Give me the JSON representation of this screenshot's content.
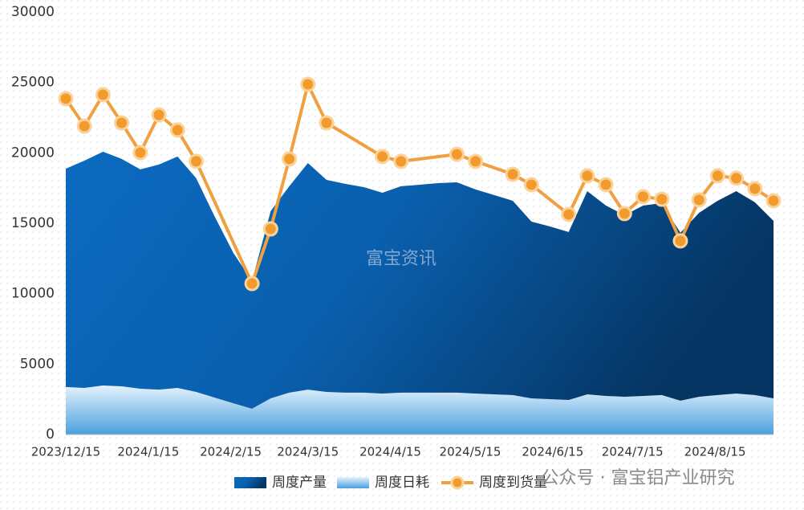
{
  "chart_data": {
    "type": "area-line",
    "watermark": "富宝资讯",
    "footer": "公众号 · 富宝铝产业研究",
    "x": [
      "2023/12/15",
      "2023/12/22",
      "2023/12/29",
      "2024/1/5",
      "2024/1/12",
      "2024/1/19",
      "2024/1/26",
      "2024/2/2",
      "2024/2/9",
      "2024/2/16",
      "2024/2/23",
      "2024/3/1",
      "2024/3/8",
      "2024/3/15",
      "2024/3/22",
      "2024/3/29",
      "2024/4/5",
      "2024/4/12",
      "2024/4/19",
      "2024/4/26",
      "2024/5/3",
      "2024/5/10",
      "2024/5/17",
      "2024/5/24",
      "2024/5/31",
      "2024/6/7",
      "2024/6/14",
      "2024/6/21",
      "2024/6/28",
      "2024/7/5",
      "2024/7/12",
      "2024/7/19",
      "2024/7/26",
      "2024/8/2",
      "2024/8/9",
      "2024/8/16",
      "2024/8/23",
      "2024/8/30",
      "2024/9/6"
    ],
    "xlim": [
      "2023/12/15",
      "2024/9/6"
    ],
    "xticks": [
      "2023/12/15",
      "2024/1/15",
      "2024/2/15",
      "2024/3/15",
      "2024/4/15",
      "2024/5/15",
      "2024/6/15",
      "2024/7/15",
      "2024/8/15"
    ],
    "ylim": [
      0,
      30000
    ],
    "yticks": [
      0,
      5000,
      10000,
      15000,
      20000,
      25000,
      30000
    ],
    "grid": false,
    "legend": "bottom",
    "series": [
      {
        "name": "周度产量",
        "kind": "area",
        "color": "#0a5fad",
        "values": [
          18880,
          19450,
          20080,
          19570,
          18830,
          19170,
          19740,
          18200,
          15460,
          12890,
          10900,
          15860,
          17630,
          19280,
          18080,
          17800,
          17570,
          17170,
          17630,
          17740,
          17850,
          17910,
          17400,
          17000,
          16600,
          15120,
          14770,
          14380,
          17280,
          16260,
          15570,
          16260,
          16430,
          14320,
          15740,
          16600,
          17280,
          16490,
          15170
        ]
      },
      {
        "name": "周度日耗",
        "kind": "area",
        "color": "#6cb4ea",
        "values": [
          3370,
          3310,
          3480,
          3420,
          3250,
          3190,
          3310,
          3020,
          2620,
          2220,
          1830,
          2570,
          2970,
          3190,
          3020,
          2970,
          2970,
          2910,
          2970,
          2970,
          2970,
          2970,
          2910,
          2850,
          2800,
          2570,
          2510,
          2450,
          2850,
          2740,
          2680,
          2740,
          2800,
          2400,
          2680,
          2800,
          2910,
          2800,
          2570
        ]
      },
      {
        "name": "周度到货量",
        "kind": "line",
        "color": "#f0a040",
        "x": [
          "2023/12/15",
          "2023/12/22",
          "2023/12/29",
          "2024/1/5",
          "2024/1/12",
          "2024/1/19",
          "2024/1/26",
          "2024/2/2",
          "2024/2/23",
          "2024/3/1",
          "2024/3/8",
          "2024/3/15",
          "2024/3/22",
          "2024/4/12",
          "2024/4/19",
          "2024/5/10",
          "2024/5/17",
          "2024/5/31",
          "2024/6/7",
          "2024/6/21",
          "2024/6/28",
          "2024/7/5",
          "2024/7/12",
          "2024/7/19",
          "2024/7/26",
          "2024/8/2",
          "2024/8/9",
          "2024/8/16",
          "2024/8/23",
          "2024/8/30",
          "2024/9/6"
        ],
        "values": [
          23850,
          21900,
          24130,
          22130,
          20020,
          22700,
          21620,
          19400,
          10720,
          14600,
          19570,
          24870,
          22130,
          19740,
          19400,
          19900,
          19400,
          18480,
          17740,
          15630,
          18370,
          17740,
          15690,
          16890,
          16710,
          13750,
          16660,
          18370,
          18200,
          17460,
          16600
        ]
      }
    ]
  }
}
